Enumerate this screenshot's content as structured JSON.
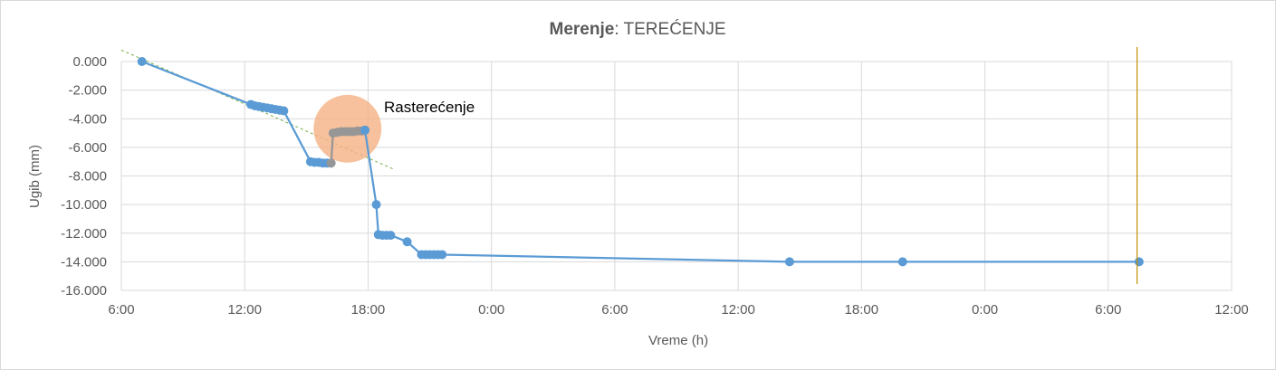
{
  "chart_data": {
    "type": "line",
    "title_bold": "Merenje",
    "title_rest": ": TEREĆENJE",
    "xlabel": "Vreme (h)",
    "ylabel": "Ugib (mm)",
    "x_ticks": [
      "6:00",
      "12:00",
      "18:00",
      "0:00",
      "6:00",
      "12:00",
      "18:00",
      "0:00",
      "6:00",
      "12:00"
    ],
    "x_unit": "hours from first tick (6:00)",
    "xlim": [
      0,
      54
    ],
    "y_ticks": [
      "0.000",
      "-2.000",
      "-4.000",
      "-6.000",
      "-8.000",
      "-10.000",
      "-12.000",
      "-14.000",
      "-16.000"
    ],
    "ylim": [
      -16,
      0
    ],
    "grid": true,
    "annotation": "Rasterećenje",
    "colors": {
      "series": "#5b9bd5",
      "unloading": "#969696",
      "highlight": "#f4b183",
      "trend": "#70ad47",
      "marker_line": "#c09000",
      "grid": "#d9d9d9"
    },
    "series": [
      {
        "points": [
          [
            1.0,
            0.0
          ],
          [
            6.3,
            -3.0
          ],
          [
            6.5,
            -3.1
          ],
          [
            6.7,
            -3.15
          ],
          [
            6.9,
            -3.2
          ],
          [
            7.1,
            -3.25
          ],
          [
            7.3,
            -3.3
          ],
          [
            7.5,
            -3.35
          ],
          [
            7.7,
            -3.4
          ],
          [
            7.9,
            -3.45
          ],
          [
            9.2,
            -7.0
          ],
          [
            9.4,
            -7.05
          ],
          [
            9.6,
            -7.05
          ],
          [
            9.8,
            -7.1
          ],
          [
            10.0,
            -7.1
          ],
          [
            10.2,
            -7.1
          ]
        ]
      },
      {
        "points": [
          [
            10.2,
            -7.1
          ],
          [
            10.3,
            -5.0
          ],
          [
            10.5,
            -4.95
          ],
          [
            10.7,
            -4.9
          ],
          [
            10.9,
            -4.9
          ],
          [
            11.1,
            -4.9
          ],
          [
            11.3,
            -4.9
          ],
          [
            11.5,
            -4.85
          ],
          [
            11.7,
            -4.85
          ],
          [
            11.85,
            -4.8
          ]
        ]
      },
      {
        "points": [
          [
            11.85,
            -4.8
          ],
          [
            12.4,
            -10.0
          ],
          [
            12.5,
            -12.1
          ],
          [
            12.7,
            -12.15
          ],
          [
            12.9,
            -12.15
          ],
          [
            13.1,
            -12.15
          ],
          [
            13.9,
            -12.6
          ],
          [
            14.6,
            -13.5
          ],
          [
            14.8,
            -13.5
          ],
          [
            15.0,
            -13.5
          ],
          [
            15.2,
            -13.5
          ],
          [
            15.4,
            -13.5
          ],
          [
            15.6,
            -13.5
          ],
          [
            32.5,
            -14.0
          ],
          [
            38.0,
            -14.0
          ],
          [
            49.5,
            -14.0
          ]
        ]
      }
    ],
    "trendline": [
      [
        0,
        0.8
      ],
      [
        13.2,
        -7.5
      ]
    ],
    "highlight_circle": {
      "cx": 11.0,
      "cy": -4.7,
      "r_hours": 1.65
    },
    "vertical_marker_x": 49.4
  }
}
